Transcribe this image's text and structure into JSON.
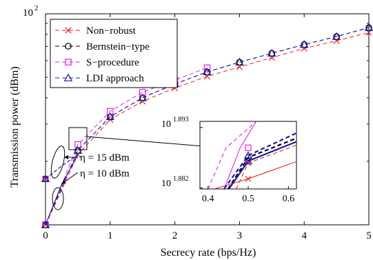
{
  "chart_data": {
    "type": "line",
    "xlabel": "Secrecy rate (bps/Hz)",
    "ylabel": "Transmission power (dBm)",
    "xlim": [
      0,
      5
    ],
    "xticks": [
      "0",
      "1",
      "2",
      "3",
      "4",
      "5"
    ],
    "y_scale": "log",
    "y_top_label_base": "10",
    "y_top_label_exp": "2",
    "grid": false,
    "legend_position": "top-left",
    "annotations": {
      "eta15": "η = 15 dBm",
      "eta10": "η = 10 dBm"
    },
    "series": [
      {
        "name": "Non−robust",
        "color": "#e8211d",
        "dash": "dashed",
        "marker": "x",
        "x": [
          0,
          0.5,
          1,
          1.5,
          2,
          2.5,
          3,
          3.5,
          4,
          4.5,
          5
        ],
        "y": [
          10,
          21.5,
          31.5,
          38.5,
          44.5,
          50.5,
          56.0,
          62.0,
          68.5,
          74.5,
          81.5
        ]
      },
      {
        "name": "Bernstein−type",
        "color": "#000000",
        "dash": "dashed",
        "marker": "circle",
        "x": [
          0,
          0.5,
          1,
          1.5,
          2,
          2.5,
          3,
          3.5,
          4,
          4.5,
          5
        ],
        "y": [
          10,
          22.5,
          32.5,
          40.0,
          46.5,
          53.0,
          59.0,
          65.0,
          71.5,
          78.0,
          86.0
        ]
      },
      {
        "name": "S−procedure",
        "color": "#e61ee6",
        "dash": "dashed",
        "marker": "square",
        "x": [
          0,
          0.5,
          1,
          1.5,
          2,
          2.5
        ],
        "y": [
          10,
          24.0,
          34.5,
          42.5,
          48.5,
          55.5
        ]
      },
      {
        "name": "LDI approach",
        "color": "#1a1aa8",
        "dash": "dashed",
        "marker": "triangle",
        "x": [
          0,
          0.5,
          1,
          1.5,
          2,
          2.5,
          3,
          3.5,
          4,
          4.5,
          5
        ],
        "y": [
          10,
          22.5,
          32.5,
          40.0,
          46.5,
          53.0,
          59.0,
          65.0,
          71.5,
          78.0,
          86.0
        ]
      }
    ],
    "eta10_series": {
      "x": [
        0,
        0.25,
        0.5
      ],
      "y": [
        10,
        15.5,
        21.5
      ]
    },
    "eta15_points": {
      "x": [
        0,
        0.25,
        0.5
      ],
      "y": [
        16.5,
        19.0,
        21.5
      ]
    },
    "inset": {
      "xlim": [
        0.38,
        0.62
      ],
      "xticks": [
        "0.4",
        "0.5",
        "0.6"
      ],
      "y_label_base": "10",
      "y_labels_exp": [
        "1.893",
        "1.882"
      ],
      "lines": [
        {
          "series": "Non−robust",
          "color": "#e8211d",
          "style": "solid",
          "x": [
            0.415,
            0.5,
            0.62
          ],
          "y": [
            1.8812,
            1.8832,
            1.8866
          ]
        },
        {
          "series": "Non−robust",
          "color": "#e8211d",
          "style": "dashed",
          "x": [
            0.47,
            0.5,
            0.62
          ],
          "y": [
            1.8812,
            1.8863,
            1.8898
          ]
        },
        {
          "series": "Bernstein−type",
          "color": "#000000",
          "style": "dashed",
          "x": [
            0.45,
            0.5,
            0.62
          ],
          "y": [
            1.8812,
            1.8874,
            1.8912
          ]
        },
        {
          "series": "S−procedure",
          "color": "#e61ee6",
          "style": "solid",
          "x": [
            0.44,
            0.48,
            0.52
          ],
          "y": [
            1.8812,
            1.8893,
            1.8945
          ]
        },
        {
          "series": "S−procedure",
          "color": "#e61ee6",
          "style": "dashed",
          "x": [
            0.4,
            0.445,
            0.52
          ],
          "y": [
            1.8812,
            1.8893,
            1.8945
          ]
        },
        {
          "series": "LDI approach",
          "color": "#1a1aa8",
          "style": "solid",
          "x": [
            0.452,
            0.5,
            0.62
          ],
          "y": [
            1.8812,
            1.8867,
            1.8905
          ]
        },
        {
          "series": "LDI approach",
          "color": "#1a1aa8",
          "style": "dashed",
          "x": [
            0.44,
            0.5,
            0.62
          ],
          "y": [
            1.8812,
            1.8878,
            1.8922
          ]
        }
      ],
      "markers": [
        {
          "series": "Non−robust",
          "marker": "x",
          "color": "#e8211d",
          "x": 0.5,
          "y": 1.8832
        },
        {
          "series": "Non−robust",
          "marker": "x",
          "color": "#e8211d",
          "x": 0.5,
          "y": 1.8863
        },
        {
          "series": "S−procedure",
          "marker": "square",
          "color": "#e61ee6",
          "x": 0.5,
          "y": 1.8893
        },
        {
          "series": "Bernstein−type",
          "marker": "circle",
          "color": "#000000",
          "x": 0.5,
          "y": 1.8874
        },
        {
          "series": "LDI approach",
          "marker": "triangle",
          "color": "#1a1aa8",
          "x": 0.5,
          "y": 1.8867
        },
        {
          "series": "LDI approach",
          "marker": "triangle",
          "color": "#1a1aa8",
          "x": 0.5,
          "y": 1.8878
        }
      ],
      "ylim": [
        1.8812,
        1.8945
      ]
    }
  }
}
